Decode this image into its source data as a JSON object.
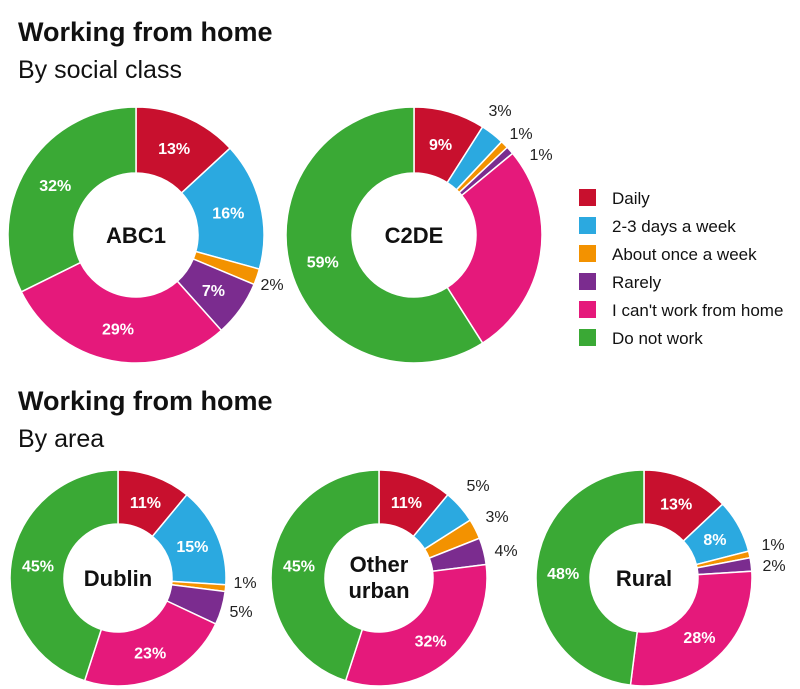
{
  "section1": {
    "title": "Working from home",
    "subtitle": "By social class"
  },
  "section2": {
    "title": "Working from home",
    "subtitle": "By area"
  },
  "legend": [
    {
      "label": "Daily",
      "color": "#C8102E"
    },
    {
      "label": "2-3 days a week",
      "color": "#2BA9E0"
    },
    {
      "label": "About once a week",
      "color": "#F39200"
    },
    {
      "label": "Rarely",
      "color": "#7B2C8F"
    },
    {
      "label": "I can't work from home",
      "color": "#E5197B"
    },
    {
      "label": "Do not work",
      "color": "#3AA935"
    }
  ],
  "chart_data": [
    {
      "type": "pie",
      "title": "ABC1",
      "group": "By social class",
      "categories": [
        "Daily",
        "2-3 days a week",
        "About once a week",
        "Rarely",
        "I can't work from home",
        "Do not work"
      ],
      "values": [
        13,
        16,
        2,
        7,
        29,
        32
      ],
      "labels": [
        "13%",
        "16%",
        "2%",
        "7%",
        "29%",
        "32%"
      ]
    },
    {
      "type": "pie",
      "title": "C2DE",
      "group": "By social class",
      "categories": [
        "Daily",
        "2-3 days a week",
        "About once a week",
        "Rarely",
        "I can't work from home",
        "Do not work"
      ],
      "values": [
        9,
        3,
        1,
        1,
        27,
        59
      ],
      "labels": [
        "9%",
        "3%",
        "1%",
        "1%",
        "",
        "59%"
      ]
    },
    {
      "type": "pie",
      "title": "Dublin",
      "group": "By area",
      "categories": [
        "Daily",
        "2-3 days a week",
        "About once a week",
        "Rarely",
        "I can't work from home",
        "Do not work"
      ],
      "values": [
        11,
        15,
        1,
        5,
        23,
        45
      ],
      "labels": [
        "11%",
        "15%",
        "1%",
        "5%",
        "23%",
        "45%"
      ]
    },
    {
      "type": "pie",
      "title": "Other urban",
      "group": "By area",
      "categories": [
        "Daily",
        "2-3 days a week",
        "About once a week",
        "Rarely",
        "I can't work from home",
        "Do not work"
      ],
      "values": [
        11,
        5,
        3,
        4,
        32,
        45
      ],
      "labels": [
        "11%",
        "5%",
        "3%",
        "4%",
        "32%",
        "45%"
      ]
    },
    {
      "type": "pie",
      "title": "Rural",
      "group": "By area",
      "categories": [
        "Daily",
        "2-3 days a week",
        "About once a week",
        "Rarely",
        "I can't work from home",
        "Do not work"
      ],
      "values": [
        13,
        8,
        1,
        2,
        28,
        48
      ],
      "labels": [
        "13%",
        "8%",
        "1%",
        "2%",
        "28%",
        "48%"
      ]
    }
  ]
}
